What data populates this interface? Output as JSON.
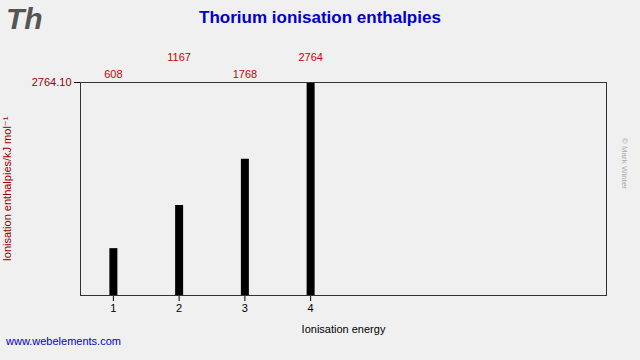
{
  "chart_data": {
    "type": "bar",
    "title": "Thorium ionisation enthalpies",
    "x": [
      1,
      2,
      3,
      4
    ],
    "values": [
      608,
      1167,
      1768,
      2764
    ],
    "color": "#000000",
    "x_label": "Ionisation energy",
    "y_label": "Ionisation enthalpies/kJ mol⁻¹",
    "xlim": [
      0.5,
      8.5
    ],
    "xticks": [
      1,
      2,
      3,
      4
    ],
    "ylim": [
      0,
      2764.1
    ],
    "yticks": [
      {
        "value": 2764.1,
        "label": "2764.10"
      }
    ],
    "grid": false,
    "data_labels": true,
    "annotations": [
      "Th",
      "www.webelements.com",
      "© Mark Winter"
    ]
  }
}
